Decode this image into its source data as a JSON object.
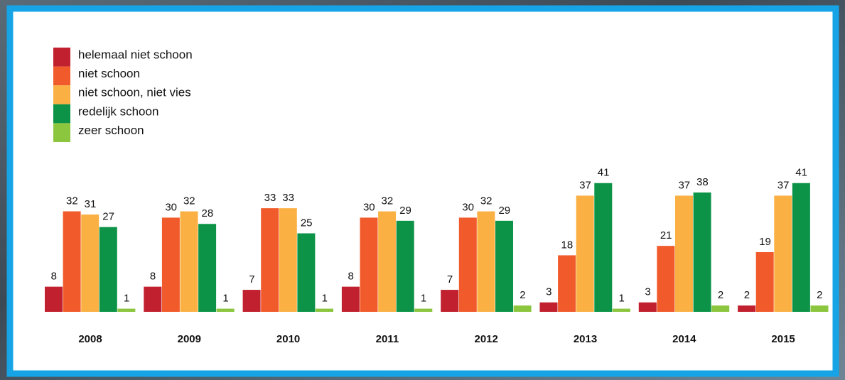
{
  "chart_data": {
    "type": "bar",
    "categories": [
      "2008",
      "2009",
      "2010",
      "2011",
      "2012",
      "2013",
      "2014",
      "2015"
    ],
    "series": [
      {
        "name": "helemaal niet schoon",
        "color": "#c1202f",
        "values": [
          8,
          8,
          7,
          8,
          7,
          3,
          3,
          2
        ]
      },
      {
        "name": "niet schoon",
        "color": "#f15a2b",
        "values": [
          32,
          30,
          33,
          30,
          30,
          18,
          21,
          19
        ]
      },
      {
        "name": "niet schoon, niet vies",
        "color": "#fbb043",
        "values": [
          31,
          32,
          33,
          32,
          32,
          37,
          37,
          37
        ]
      },
      {
        "name": "redelijk schoon",
        "color": "#0c9347",
        "values": [
          27,
          28,
          25,
          29,
          29,
          41,
          38,
          41
        ]
      },
      {
        "name": "zeer schoon",
        "color": "#8cc63f",
        "values": [
          1,
          1,
          1,
          1,
          2,
          1,
          2,
          2
        ]
      }
    ]
  }
}
